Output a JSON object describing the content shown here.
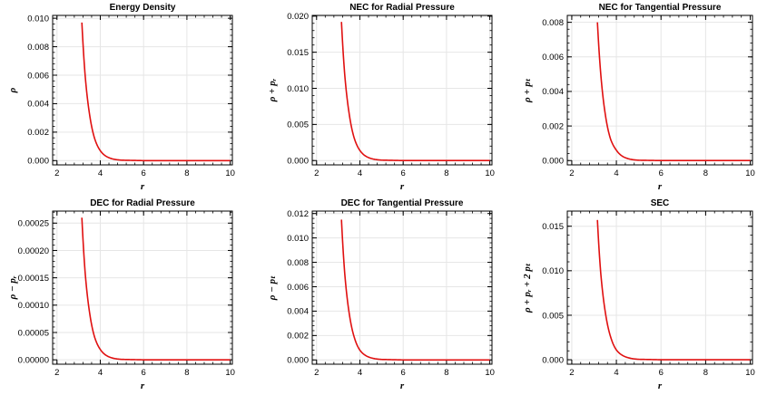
{
  "colors": {
    "curve": "#e01010",
    "grid": "#e6e6e6",
    "frame": "#000000"
  },
  "chart_data": [
    {
      "type": "line",
      "title": "Energy Density",
      "xlabel": "r",
      "ylabel": "ρ",
      "xlim": [
        1.8,
        10.1
      ],
      "ylim": [
        -0.0003,
        0.0102
      ],
      "xticks": [
        2,
        4,
        6,
        8,
        10
      ],
      "yticks": [
        0.0,
        0.002,
        0.004,
        0.006,
        0.008,
        0.01
      ],
      "ytick_labels": [
        "0.000",
        "0.002",
        "0.004",
        "0.006",
        "0.008",
        "0.010"
      ],
      "grid": true,
      "series": [
        {
          "x": [
            3.15,
            3.3,
            3.5,
            3.75,
            4.0,
            4.5,
            5.0,
            6.0,
            8.0,
            10.0
          ],
          "y": [
            0.0097,
            0.006,
            0.0033,
            0.0015,
            0.0007,
            0.00015,
            3e-05,
            0.0,
            0.0,
            0.0
          ]
        }
      ]
    },
    {
      "type": "line",
      "title": "NEC for Radial Pressure",
      "xlabel": "r",
      "ylabel": "ρ + pᵣ",
      "xlim": [
        1.8,
        10.1
      ],
      "ylim": [
        -0.0006,
        0.0201
      ],
      "xticks": [
        2,
        4,
        6,
        8,
        10
      ],
      "yticks": [
        0.0,
        0.005,
        0.01,
        0.015,
        0.02
      ],
      "ytick_labels": [
        "0.000",
        "0.005",
        "0.010",
        "0.015",
        "0.020"
      ],
      "grid": true,
      "series": [
        {
          "x": [
            3.15,
            3.3,
            3.5,
            3.75,
            4.0,
            4.5,
            5.0,
            6.0,
            8.0,
            10.0
          ],
          "y": [
            0.0192,
            0.0119,
            0.0066,
            0.003,
            0.0014,
            0.0003,
            6e-05,
            0.0,
            0.0,
            0.0
          ]
        }
      ]
    },
    {
      "type": "line",
      "title": "NEC for Tangential Pressure",
      "xlabel": "r",
      "ylabel": "ρ + pₜ",
      "xlim": [
        1.8,
        10.1
      ],
      "ylim": [
        -0.00025,
        0.0084
      ],
      "xticks": [
        2,
        4,
        6,
        8,
        10
      ],
      "yticks": [
        0.0,
        0.002,
        0.004,
        0.006,
        0.008
      ],
      "ytick_labels": [
        "0.000",
        "0.002",
        "0.004",
        "0.006",
        "0.008"
      ],
      "grid": true,
      "series": [
        {
          "x": [
            3.15,
            3.3,
            3.5,
            3.75,
            4.0,
            4.5,
            5.0,
            6.0,
            8.0,
            10.0
          ],
          "y": [
            0.008,
            0.005,
            0.0027,
            0.0012,
            0.0006,
            0.00012,
            2e-05,
            0.0,
            0.0,
            0.0
          ]
        }
      ]
    },
    {
      "type": "line",
      "title": "DEC for Radial Pressure",
      "xlabel": "r",
      "ylabel": "ρ − pᵣ",
      "xlim": [
        1.8,
        10.1
      ],
      "ylim": [
        -8e-06,
        0.000272
      ],
      "xticks": [
        2,
        4,
        6,
        8,
        10
      ],
      "yticks": [
        0.0,
        5e-05,
        0.0001,
        0.00015,
        0.0002,
        0.00025
      ],
      "ytick_labels": [
        "0.00000",
        "0.00005",
        "0.00010",
        "0.00015",
        "0.00020",
        "0.00025"
      ],
      "grid": true,
      "series": [
        {
          "x": [
            3.15,
            3.3,
            3.5,
            3.75,
            4.0,
            4.5,
            5.0,
            6.0,
            8.0,
            10.0
          ],
          "y": [
            0.00026,
            0.00016,
            8.8e-05,
            4e-05,
            1.9e-05,
            4e-06,
            8e-07,
            0.0,
            0.0,
            0.0
          ]
        }
      ]
    },
    {
      "type": "line",
      "title": "DEC for Tangential Pressure",
      "xlabel": "r",
      "ylabel": "ρ − pₜ",
      "xlim": [
        1.8,
        10.1
      ],
      "ylim": [
        -0.00035,
        0.0122
      ],
      "xticks": [
        2,
        4,
        6,
        8,
        10
      ],
      "yticks": [
        0.0,
        0.002,
        0.004,
        0.006,
        0.008,
        0.01,
        0.012
      ],
      "ytick_labels": [
        "0.000",
        "0.002",
        "0.004",
        "0.006",
        "0.008",
        "0.010",
        "0.012"
      ],
      "grid": true,
      "series": [
        {
          "x": [
            3.15,
            3.3,
            3.5,
            3.75,
            4.0,
            4.5,
            5.0,
            6.0,
            8.0,
            10.0
          ],
          "y": [
            0.0115,
            0.0071,
            0.0039,
            0.0018,
            0.0008,
            0.00018,
            4e-05,
            0.0,
            0.0,
            0.0
          ]
        }
      ]
    },
    {
      "type": "line",
      "title": "SEC",
      "xlabel": "r",
      "ylabel": "ρ + pᵣ + 2 pₜ",
      "xlim": [
        1.8,
        10.1
      ],
      "ylim": [
        -0.0005,
        0.0167
      ],
      "xticks": [
        2,
        4,
        6,
        8,
        10
      ],
      "yticks": [
        0.0,
        0.005,
        0.01,
        0.015
      ],
      "ytick_labels": [
        "0.000",
        "0.005",
        "0.010",
        "0.015"
      ],
      "grid": true,
      "series": [
        {
          "x": [
            3.15,
            3.3,
            3.5,
            3.75,
            4.0,
            4.5,
            5.0,
            6.0,
            8.0,
            10.0
          ],
          "y": [
            0.0157,
            0.0097,
            0.0054,
            0.0025,
            0.0011,
            0.00025,
            5e-05,
            0.0,
            0.0,
            0.0
          ]
        }
      ]
    }
  ]
}
